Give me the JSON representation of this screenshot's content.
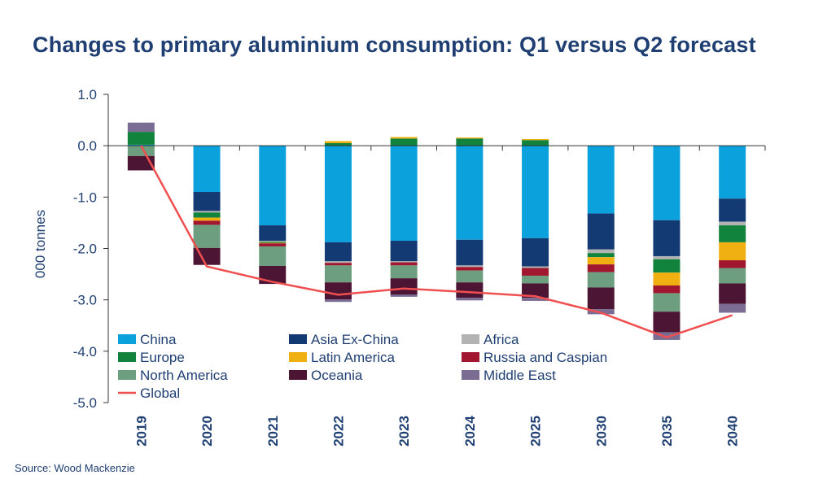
{
  "chart_data": {
    "type": "bar",
    "stacked": true,
    "title": "Changes to primary aluminium consumption: Q1 versus Q2 forecast",
    "ylabel": "000 tonnes",
    "xlabel": "",
    "ylim": [
      -5.0,
      1.0
    ],
    "yticks": [
      "1.0",
      "0.0",
      "-1.0",
      "-2.0",
      "-3.0",
      "-4.0",
      "-5.0"
    ],
    "ytick_values": [
      1,
      0,
      -1,
      -2,
      -3,
      -4,
      -5
    ],
    "grid": false,
    "legend_position": "bottom-left inside plot",
    "categories": [
      "2019",
      "2020",
      "2021",
      "2022",
      "2023",
      "2024",
      "2025",
      "2030",
      "2035",
      "2040"
    ],
    "series": [
      {
        "name": "China",
        "color": "#0ba1dc",
        "values": [
          0.02,
          -0.9,
          -1.55,
          -1.88,
          -1.85,
          -1.83,
          -1.8,
          -1.32,
          -1.45,
          -1.03
        ]
      },
      {
        "name": "Asia Ex-China",
        "color": "#143a73",
        "values": [
          0.0,
          -0.37,
          -0.3,
          -0.37,
          -0.4,
          -0.5,
          -0.55,
          -0.7,
          -0.7,
          -0.45
        ]
      },
      {
        "name": "Africa",
        "color": "#b3b3b3",
        "values": [
          0.0,
          -0.03,
          -0.02,
          -0.03,
          -0.02,
          -0.03,
          -0.03,
          -0.07,
          -0.06,
          -0.07
        ]
      },
      {
        "name": "Europe",
        "color": "#11833c",
        "values": [
          0.25,
          -0.1,
          -0.02,
          0.05,
          0.14,
          0.14,
          0.11,
          -0.08,
          -0.26,
          -0.33
        ]
      },
      {
        "name": "Latin America",
        "color": "#f1b011",
        "values": [
          0.0,
          -0.06,
          -0.01,
          0.04,
          0.03,
          0.02,
          0.02,
          -0.14,
          -0.25,
          -0.35
        ]
      },
      {
        "name": "Russia and Caspian",
        "color": "#a1172f",
        "values": [
          0.0,
          -0.08,
          -0.06,
          -0.05,
          -0.06,
          -0.07,
          -0.15,
          -0.15,
          -0.15,
          -0.15
        ]
      },
      {
        "name": "North America",
        "color": "#6d9e7f",
        "values": [
          -0.2,
          -0.45,
          -0.38,
          -0.33,
          -0.25,
          -0.23,
          -0.15,
          -0.3,
          -0.36,
          -0.3
        ]
      },
      {
        "name": "Oceania",
        "color": "#4c1534",
        "values": [
          -0.28,
          -0.33,
          -0.35,
          -0.33,
          -0.32,
          -0.3,
          -0.28,
          -0.42,
          -0.4,
          -0.4
        ]
      },
      {
        "name": "Middle East",
        "color": "#7a6c93",
        "values": [
          0.18,
          0.0,
          0.0,
          -0.05,
          -0.04,
          -0.05,
          -0.06,
          -0.1,
          -0.15,
          -0.17
        ]
      }
    ],
    "line_series": {
      "name": "Global",
      "color": "#f04f4f",
      "values": [
        0.0,
        -2.35,
        -2.65,
        -2.9,
        -2.78,
        -2.85,
        -2.93,
        -3.25,
        -3.73,
        -3.3
      ]
    },
    "source": "Source: Wood Mackenzie"
  }
}
